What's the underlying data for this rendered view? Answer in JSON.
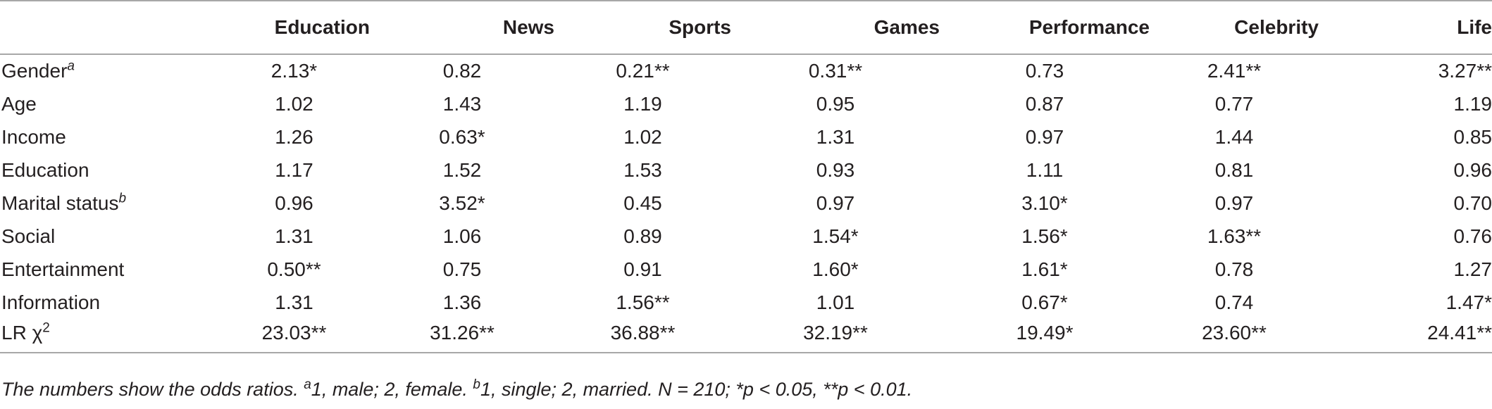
{
  "columns": [
    "Education",
    "News",
    "Sports",
    "Games",
    "Performance",
    "Celebrity",
    "Life"
  ],
  "rows": [
    {
      "label": "Gender",
      "sup": "a",
      "values": [
        "2.13*",
        "0.82",
        "0.21**",
        "0.31**",
        "0.73",
        "2.41**",
        "3.27**"
      ]
    },
    {
      "label": "Age",
      "sup": "",
      "values": [
        "1.02",
        "1.43",
        "1.19",
        "0.95",
        "0.87",
        "0.77",
        "1.19"
      ]
    },
    {
      "label": "Income",
      "sup": "",
      "values": [
        "1.26",
        "0.63*",
        "1.02",
        "1.31",
        "0.97",
        "1.44",
        "0.85"
      ]
    },
    {
      "label": "Education",
      "sup": "",
      "values": [
        "1.17",
        "1.52",
        "1.53",
        "0.93",
        "1.11",
        "0.81",
        "0.96"
      ]
    },
    {
      "label": "Marital status",
      "sup": "b",
      "values": [
        "0.96",
        "3.52*",
        "0.45",
        "0.97",
        "3.10*",
        "0.97",
        "0.70"
      ]
    },
    {
      "label": "Social",
      "sup": "",
      "values": [
        "1.31",
        "1.06",
        "0.89",
        "1.54*",
        "1.56*",
        "1.63**",
        "0.76"
      ]
    },
    {
      "label": "Entertainment",
      "sup": "",
      "values": [
        "0.50**",
        "0.75",
        "0.91",
        "1.60*",
        "1.61*",
        "0.78",
        "1.27"
      ]
    },
    {
      "label": "Information",
      "sup": "",
      "values": [
        "1.31",
        "1.36",
        "1.56**",
        "1.01",
        "0.67*",
        "0.74",
        "1.47*"
      ]
    },
    {
      "label": "LR χ",
      "sup": "2",
      "values": [
        "23.03**",
        "31.26**",
        "36.88**",
        "32.19**",
        "19.49*",
        "23.60**",
        "24.41**"
      ]
    }
  ],
  "footnote": {
    "part1": "The numbers show the odds ratios. ",
    "sup_a": "a",
    "part2": "1, male; 2, female. ",
    "sup_b": "b",
    "part3": "1, single; 2, married. N = 210; *p < 0.05, **p < 0.01."
  }
}
